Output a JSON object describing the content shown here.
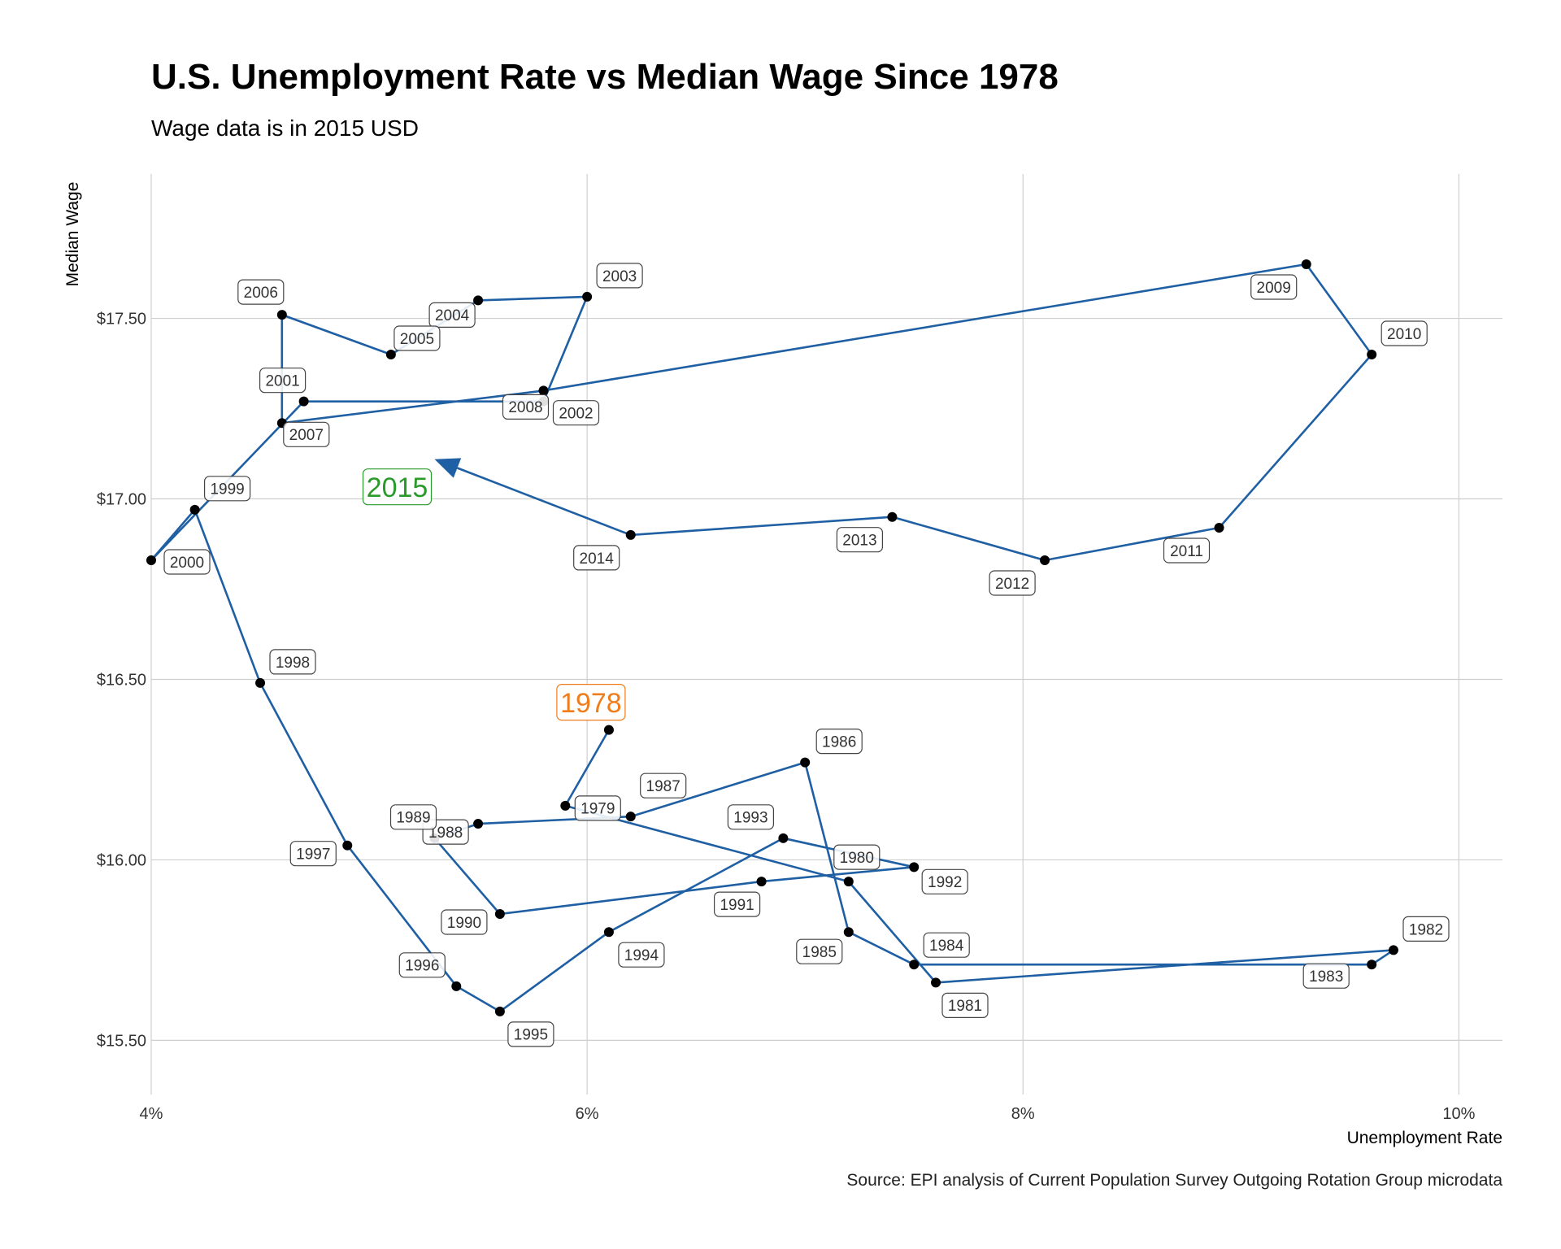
{
  "title": "U.S. Unemployment Rate vs Median Wage Since 1978",
  "subtitle": "Wage data is in 2015 USD",
  "source": "Source: EPI analysis of Current Population Survey Outgoing Rotation Group microdata",
  "chart_data": {
    "type": "line",
    "title": "U.S. Unemployment Rate vs Median Wage Since 1978",
    "subtitle": "Wage data is in 2015 USD",
    "xlabel": "Unemployment Rate",
    "ylabel": "Median Wage",
    "xlim": [
      4.0,
      10.2
    ],
    "ylim": [
      15.35,
      17.9
    ],
    "x_ticks": [
      4,
      6,
      8,
      10
    ],
    "x_tick_labels": [
      "4%",
      "6%",
      "8%",
      "10%"
    ],
    "y_ticks": [
      15.5,
      16.0,
      16.5,
      17.0,
      17.5
    ],
    "y_tick_labels": [
      "$15.50",
      "$16.00",
      "$16.50",
      "$17.00",
      "$17.50"
    ],
    "grid": true,
    "line_color": "#1f5fa3",
    "point_color": "#000000",
    "start_label_color": "#f07d1b",
    "end_label_color": "#2a9a2a",
    "points": [
      {
        "year": "1978",
        "x": 6.1,
        "y": 16.36
      },
      {
        "year": "1979",
        "x": 5.9,
        "y": 16.15
      },
      {
        "year": "1980",
        "x": 7.2,
        "y": 15.94
      },
      {
        "year": "1981",
        "x": 7.6,
        "y": 15.66
      },
      {
        "year": "1982",
        "x": 9.7,
        "y": 15.75
      },
      {
        "year": "1983",
        "x": 9.6,
        "y": 15.71
      },
      {
        "year": "1984",
        "x": 7.5,
        "y": 15.71
      },
      {
        "year": "1985",
        "x": 7.2,
        "y": 15.8
      },
      {
        "year": "1986",
        "x": 7.0,
        "y": 16.27
      },
      {
        "year": "1987",
        "x": 6.2,
        "y": 16.12
      },
      {
        "year": "1988",
        "x": 5.5,
        "y": 16.1
      },
      {
        "year": "1989",
        "x": 5.3,
        "y": 16.06
      },
      {
        "year": "1990",
        "x": 5.6,
        "y": 15.85
      },
      {
        "year": "1991",
        "x": 6.8,
        "y": 15.94
      },
      {
        "year": "1992",
        "x": 7.5,
        "y": 15.98
      },
      {
        "year": "1993",
        "x": 6.9,
        "y": 16.06
      },
      {
        "year": "1994",
        "x": 6.1,
        "y": 15.8
      },
      {
        "year": "1995",
        "x": 5.6,
        "y": 15.58
      },
      {
        "year": "1996",
        "x": 5.4,
        "y": 15.65
      },
      {
        "year": "1997",
        "x": 4.9,
        "y": 16.04
      },
      {
        "year": "1998",
        "x": 4.5,
        "y": 16.49
      },
      {
        "year": "1999",
        "x": 4.2,
        "y": 16.97
      },
      {
        "year": "2000",
        "x": 4.0,
        "y": 16.83
      },
      {
        "year": "2001",
        "x": 4.7,
        "y": 17.27
      },
      {
        "year": "2002",
        "x": 5.8,
        "y": 17.27
      },
      {
        "year": "2003",
        "x": 6.0,
        "y": 17.56
      },
      {
        "year": "2004",
        "x": 5.5,
        "y": 17.55
      },
      {
        "year": "2005",
        "x": 5.1,
        "y": 17.4
      },
      {
        "year": "2006",
        "x": 4.6,
        "y": 17.51
      },
      {
        "year": "2007",
        "x": 4.6,
        "y": 17.21
      },
      {
        "year": "2008",
        "x": 5.8,
        "y": 17.3
      },
      {
        "year": "2009",
        "x": 9.3,
        "y": 17.65
      },
      {
        "year": "2010",
        "x": 9.6,
        "y": 17.4
      },
      {
        "year": "2011",
        "x": 8.9,
        "y": 16.92
      },
      {
        "year": "2012",
        "x": 8.1,
        "y": 16.83
      },
      {
        "year": "2013",
        "x": 7.4,
        "y": 16.95
      },
      {
        "year": "2014",
        "x": 6.2,
        "y": 16.9
      },
      {
        "year": "2015",
        "x": 5.3,
        "y": 17.11
      }
    ]
  }
}
